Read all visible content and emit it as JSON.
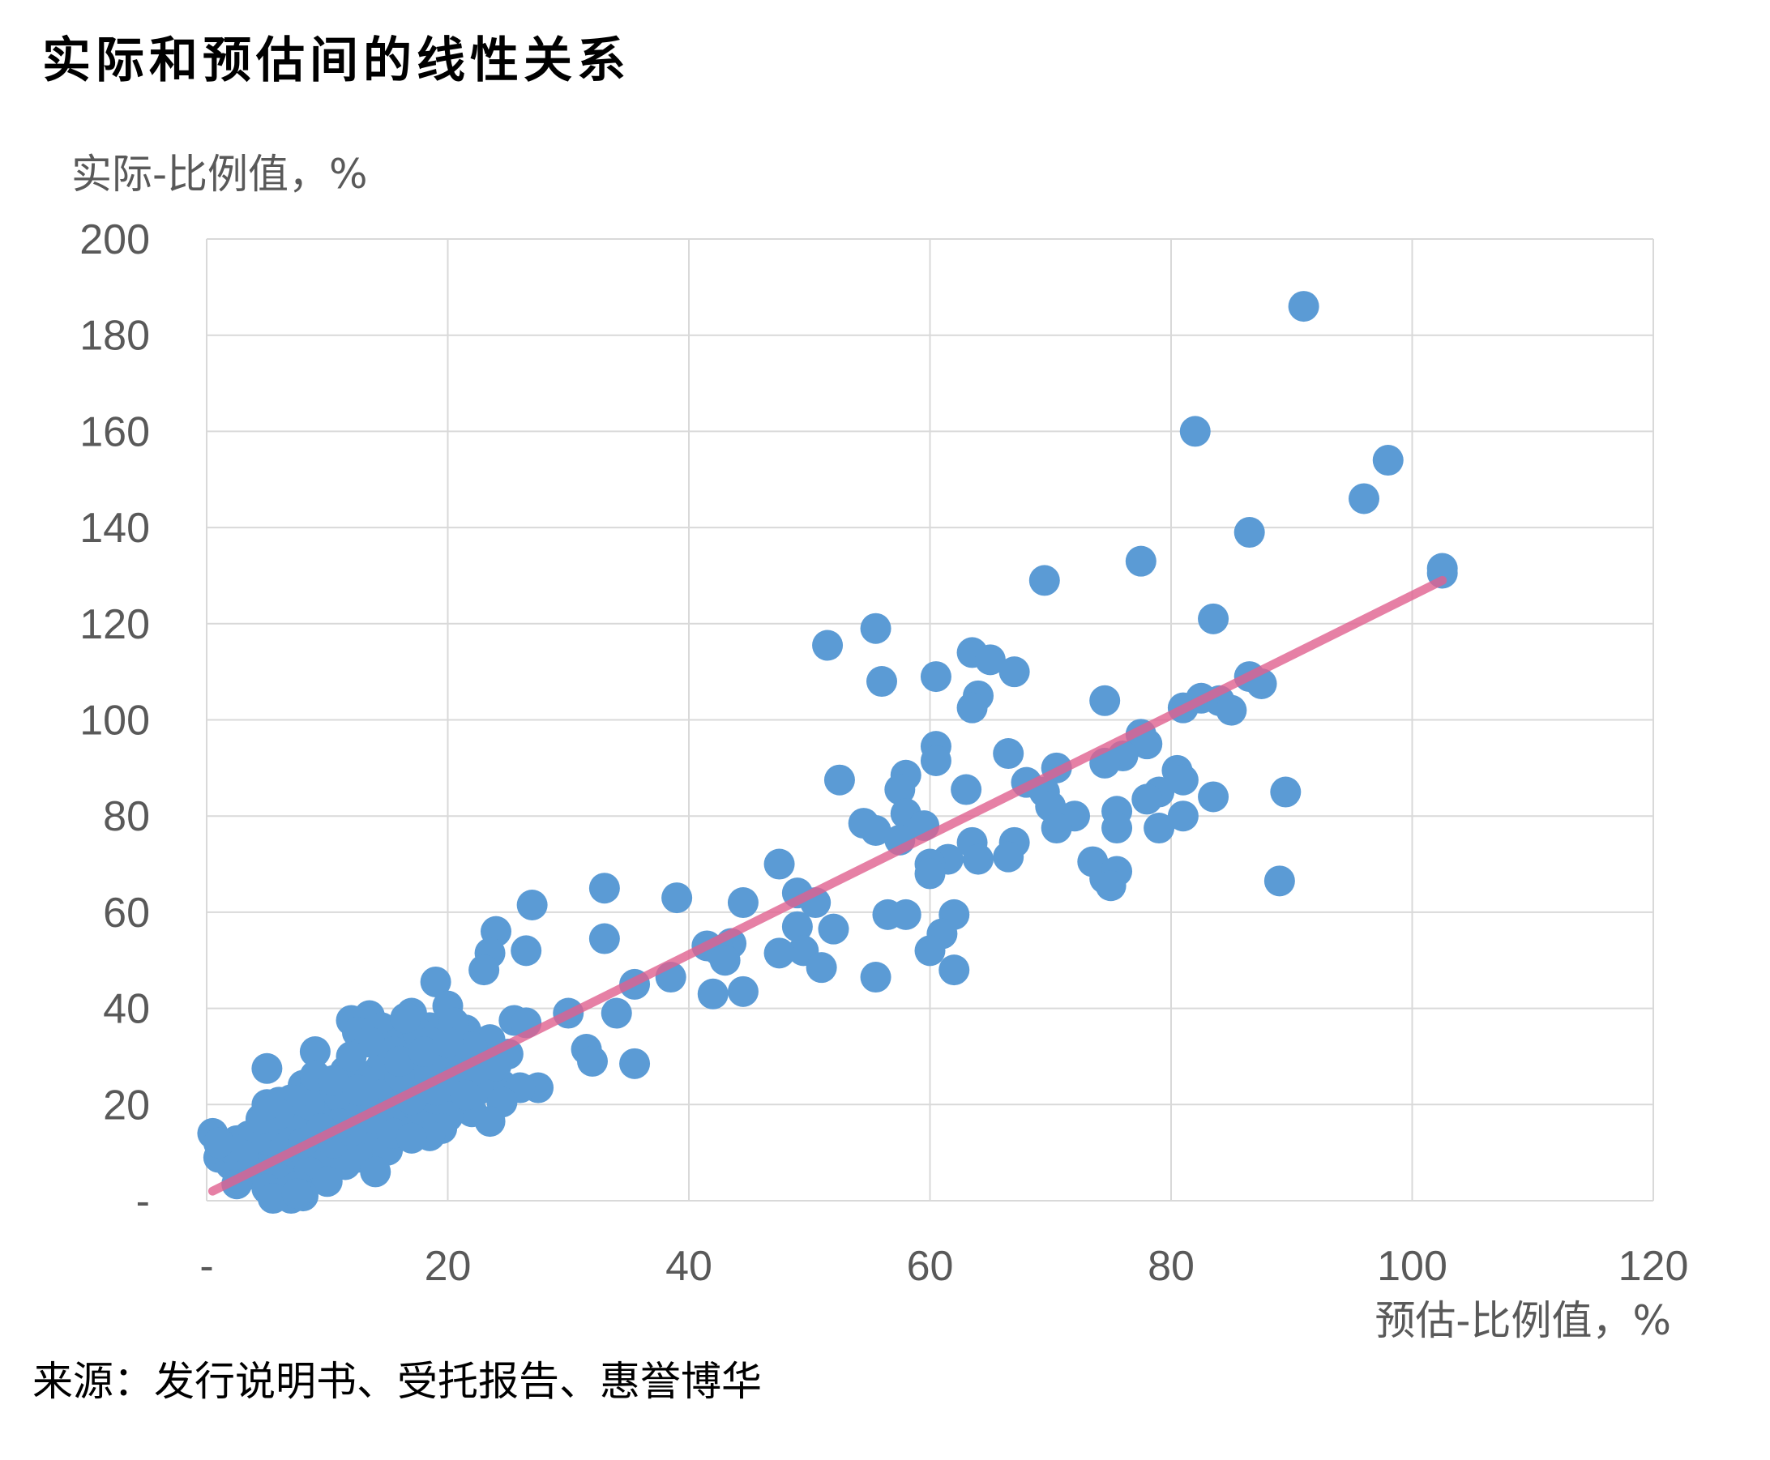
{
  "chart_title": "实际和预估间的线性关系",
  "source": "来源：发行说明书、受托报告、惠誉博华",
  "colors": {
    "points": "#5B9BD5",
    "fit_line": "#E0608F",
    "grid": "#D9D9D9",
    "axis_text": "#595959"
  },
  "chart_data": {
    "type": "scatter",
    "title": "实际和预估间的线性关系",
    "xlabel": "预估-比例值，%",
    "ylabel": "实际-比例值，%",
    "xlim": [
      0,
      120
    ],
    "ylim": [
      0,
      200
    ],
    "x_ticks": [
      "-",
      "20",
      "40",
      "60",
      "80",
      "100",
      "120"
    ],
    "y_ticks": [
      "-",
      "20",
      "40",
      "60",
      "80",
      "100",
      "120",
      "140",
      "160",
      "180",
      "200"
    ],
    "grid": true,
    "legend": "none",
    "trendline": {
      "x": [
        0.5,
        102.5
      ],
      "y": [
        2,
        129
      ]
    },
    "points": [
      [
        91,
        186
      ],
      [
        82,
        160
      ],
      [
        98,
        154
      ],
      [
        96,
        146
      ],
      [
        86.5,
        139
      ],
      [
        77.5,
        133
      ],
      [
        102.5,
        131.5
      ],
      [
        102.5,
        130.5
      ],
      [
        69.5,
        129
      ],
      [
        83.5,
        121
      ],
      [
        55.5,
        119
      ],
      [
        51.5,
        115.5
      ],
      [
        63.5,
        114
      ],
      [
        65,
        112.5
      ],
      [
        67,
        110
      ],
      [
        60.5,
        109
      ],
      [
        86.5,
        109
      ],
      [
        56,
        108
      ],
      [
        87.5,
        107.5
      ],
      [
        64,
        105
      ],
      [
        74.5,
        104
      ],
      [
        82.5,
        104.5
      ],
      [
        84,
        104
      ],
      [
        63.5,
        102.5
      ],
      [
        81,
        102.5
      ],
      [
        85,
        102
      ],
      [
        77.5,
        97
      ],
      [
        78,
        95
      ],
      [
        60.5,
        94.5
      ],
      [
        66.5,
        93
      ],
      [
        76,
        92.5
      ],
      [
        60.5,
        91.5
      ],
      [
        74.5,
        91
      ],
      [
        70.5,
        90
      ],
      [
        80.5,
        89.5
      ],
      [
        58,
        88.5
      ],
      [
        52.5,
        87.5
      ],
      [
        68,
        87
      ],
      [
        81,
        87.5
      ],
      [
        63,
        85.5
      ],
      [
        57.5,
        85.5
      ],
      [
        69.5,
        85
      ],
      [
        79,
        85
      ],
      [
        89.5,
        85
      ],
      [
        78,
        83.5
      ],
      [
        83.5,
        84
      ],
      [
        70,
        82
      ],
      [
        58,
        80.5
      ],
      [
        75.5,
        81
      ],
      [
        72,
        80
      ],
      [
        81,
        80
      ],
      [
        54.5,
        78.5
      ],
      [
        59.5,
        78
      ],
      [
        55.5,
        77
      ],
      [
        70.5,
        77.5
      ],
      [
        75.5,
        77.5
      ],
      [
        79,
        77.5
      ],
      [
        57.5,
        75
      ],
      [
        63.5,
        74.5
      ],
      [
        67,
        74.5
      ],
      [
        66.5,
        71.5
      ],
      [
        61.5,
        71
      ],
      [
        64,
        71
      ],
      [
        60,
        70
      ],
      [
        73.5,
        70.5
      ],
      [
        47.5,
        70
      ],
      [
        60,
        68
      ],
      [
        74.5,
        67
      ],
      [
        75.5,
        68.5
      ],
      [
        89,
        66.5
      ],
      [
        75,
        65.5
      ],
      [
        33,
        65
      ],
      [
        49,
        64
      ],
      [
        39,
        63
      ],
      [
        27,
        61.5
      ],
      [
        44.5,
        62
      ],
      [
        50.5,
        62
      ],
      [
        62,
        59.5
      ],
      [
        56.5,
        59.5
      ],
      [
        58,
        59.5
      ],
      [
        24,
        56
      ],
      [
        52,
        56.5
      ],
      [
        49,
        57
      ],
      [
        33,
        54.5
      ],
      [
        61,
        55.5
      ],
      [
        43.5,
        53.5
      ],
      [
        41.5,
        53
      ],
      [
        26.5,
        52
      ],
      [
        23.5,
        51.5
      ],
      [
        42.5,
        52
      ],
      [
        60,
        52
      ],
      [
        49.5,
        52
      ],
      [
        47.5,
        51.5
      ],
      [
        43,
        50
      ],
      [
        23,
        48
      ],
      [
        51,
        48.5
      ],
      [
        62,
        48
      ],
      [
        38.5,
        46.5
      ],
      [
        55.5,
        46.5
      ],
      [
        19,
        45.5
      ],
      [
        35.5,
        45
      ],
      [
        42,
        43
      ],
      [
        44.5,
        43.5
      ],
      [
        20,
        40.5
      ],
      [
        17,
        39
      ],
      [
        13.5,
        38.5
      ],
      [
        30,
        39
      ],
      [
        34,
        39
      ],
      [
        12,
        37.5
      ],
      [
        25.5,
        37.5
      ],
      [
        26.5,
        37
      ],
      [
        14.5,
        36
      ],
      [
        18.5,
        36
      ],
      [
        21.5,
        35.5
      ],
      [
        12.5,
        35
      ],
      [
        23.5,
        33.5
      ],
      [
        31.5,
        31.5
      ],
      [
        16,
        33
      ],
      [
        9,
        31
      ],
      [
        22.5,
        30.5
      ],
      [
        25,
        30.5
      ],
      [
        17,
        30
      ],
      [
        32,
        29
      ],
      [
        35.5,
        28.5
      ],
      [
        5,
        27.5
      ],
      [
        11.5,
        27
      ],
      [
        14,
        26.5
      ],
      [
        19,
        26
      ],
      [
        27.5,
        23.5
      ],
      [
        24.5,
        24
      ],
      [
        26,
        23.5
      ],
      [
        22.5,
        23
      ],
      [
        8,
        24
      ],
      [
        9,
        23.5
      ],
      [
        11,
        22
      ],
      [
        16.5,
        21.5
      ],
      [
        6,
        20.5
      ],
      [
        12.5,
        20
      ],
      [
        21,
        20
      ],
      [
        24.5,
        20.5
      ],
      [
        10,
        19.5
      ],
      [
        13,
        19
      ],
      [
        18,
        18.5
      ],
      [
        7.5,
        18
      ],
      [
        15.5,
        18
      ],
      [
        22,
        18.5
      ],
      [
        11,
        17.5
      ],
      [
        20,
        17.5
      ],
      [
        23.5,
        16.5
      ],
      [
        9.5,
        16.5
      ],
      [
        13.5,
        16
      ],
      [
        17.5,
        16
      ],
      [
        8,
        15.5
      ],
      [
        5.5,
        15
      ],
      [
        19.5,
        15
      ],
      [
        12,
        15
      ],
      [
        16,
        14.5
      ],
      [
        10.5,
        14
      ],
      [
        0.5,
        14
      ],
      [
        6.5,
        14
      ],
      [
        18.5,
        13.5
      ],
      [
        3.5,
        13.5
      ],
      [
        14.5,
        13
      ],
      [
        8.5,
        13
      ],
      [
        11.5,
        12.5
      ],
      [
        2.5,
        12.5
      ],
      [
        6,
        12
      ],
      [
        9.5,
        11.5
      ],
      [
        13,
        11.5
      ],
      [
        4,
        11
      ],
      [
        7.5,
        10.5
      ],
      [
        15,
        10.5
      ],
      [
        1.5,
        10
      ],
      [
        10.5,
        10
      ],
      [
        5,
        9.5
      ],
      [
        12.5,
        9
      ],
      [
        1,
        9
      ],
      [
        8,
        8.5
      ],
      [
        3.5,
        8.5
      ],
      [
        9.5,
        8
      ],
      [
        6.5,
        7.5
      ],
      [
        11.5,
        7.5
      ],
      [
        2,
        7.5
      ],
      [
        14,
        6
      ],
      [
        4.5,
        6.5
      ],
      [
        8.5,
        6
      ],
      [
        3,
        5
      ],
      [
        6,
        4.5
      ],
      [
        10,
        4
      ],
      [
        2.5,
        3.5
      ],
      [
        7.5,
        3
      ],
      [
        5,
        2.5
      ],
      [
        6,
        1.5
      ],
      [
        7,
        0.5
      ],
      [
        8,
        1
      ],
      [
        5.5,
        0.5
      ],
      [
        7.5,
        1.5
      ],
      [
        15,
        19
      ],
      [
        16.5,
        24
      ],
      [
        18,
        27
      ],
      [
        19.5,
        29
      ],
      [
        21,
        31
      ],
      [
        14.5,
        28
      ],
      [
        13,
        25
      ],
      [
        10,
        22
      ],
      [
        11.5,
        20.5
      ],
      [
        17,
        21
      ],
      [
        19,
        23
      ],
      [
        20.5,
        25
      ],
      [
        22,
        27
      ],
      [
        15.5,
        31
      ],
      [
        13.5,
        33
      ],
      [
        17.5,
        35
      ],
      [
        20.5,
        37
      ],
      [
        18.5,
        33
      ],
      [
        12,
        30
      ],
      [
        14.5,
        22
      ],
      [
        16,
        26
      ],
      [
        9,
        18
      ],
      [
        7,
        16
      ],
      [
        4,
        13
      ],
      [
        6.5,
        11
      ],
      [
        3,
        9.5
      ],
      [
        10.5,
        12
      ],
      [
        12,
        14.5
      ],
      [
        8.5,
        20
      ],
      [
        9,
        26
      ],
      [
        10.5,
        25
      ],
      [
        7,
        21
      ],
      [
        6,
        18
      ],
      [
        11,
        16
      ],
      [
        14,
        17
      ],
      [
        15.5,
        14
      ],
      [
        17,
        13
      ],
      [
        13,
        21
      ],
      [
        16,
        29
      ],
      [
        18,
        31
      ],
      [
        21.5,
        22
      ],
      [
        24,
        28
      ],
      [
        22,
        32
      ],
      [
        20,
        33
      ],
      [
        16.5,
        38
      ],
      [
        12.5,
        23
      ],
      [
        4.5,
        17
      ],
      [
        5,
        20
      ],
      [
        8,
        12
      ],
      [
        9.5,
        15
      ],
      [
        2,
        11
      ],
      [
        1,
        12
      ]
    ]
  }
}
